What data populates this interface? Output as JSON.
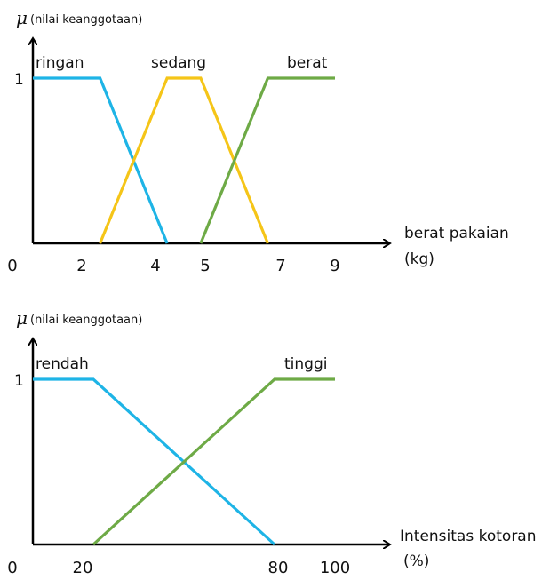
{
  "chart_data": [
    {
      "type": "line",
      "ylabel_symbol": "μ",
      "ylabel_text": "(nilai keanggotaan)",
      "y_tick": "1",
      "xlabel_line1": "berat pakaian",
      "xlabel_line2": "(kg)",
      "x_ticks": [
        "0",
        "2",
        "4",
        "5",
        "7",
        "9"
      ],
      "xlim": [
        0,
        9
      ],
      "ylim": [
        0,
        1
      ],
      "series": [
        {
          "name": "ringan",
          "color": "#1EB4E6",
          "points": [
            [
              0,
              1
            ],
            [
              2,
              1
            ],
            [
              4,
              0
            ]
          ]
        },
        {
          "name": "sedang",
          "color": "#F5C518",
          "points": [
            [
              2,
              0
            ],
            [
              4,
              1
            ],
            [
              5,
              1
            ],
            [
              7,
              0
            ]
          ]
        },
        {
          "name": "berat",
          "color": "#6EAA46",
          "points": [
            [
              5,
              0
            ],
            [
              7,
              1
            ],
            [
              9,
              1
            ]
          ]
        }
      ]
    },
    {
      "type": "line",
      "ylabel_symbol": "μ",
      "ylabel_text": "(nilai keanggotaan)",
      "y_tick": "1",
      "xlabel_line1": "Intensitas kotoran",
      "xlabel_line2": "(%)",
      "x_ticks": [
        "0",
        "20",
        "80",
        "100"
      ],
      "xlim": [
        0,
        100
      ],
      "ylim": [
        0,
        1
      ],
      "series": [
        {
          "name": "rendah",
          "color": "#1EB4E6",
          "points": [
            [
              0,
              1
            ],
            [
              20,
              1
            ],
            [
              80,
              0
            ]
          ]
        },
        {
          "name": "tinggi",
          "color": "#6EAA46",
          "points": [
            [
              20,
              0
            ],
            [
              80,
              1
            ],
            [
              100,
              1
            ]
          ]
        }
      ]
    }
  ]
}
